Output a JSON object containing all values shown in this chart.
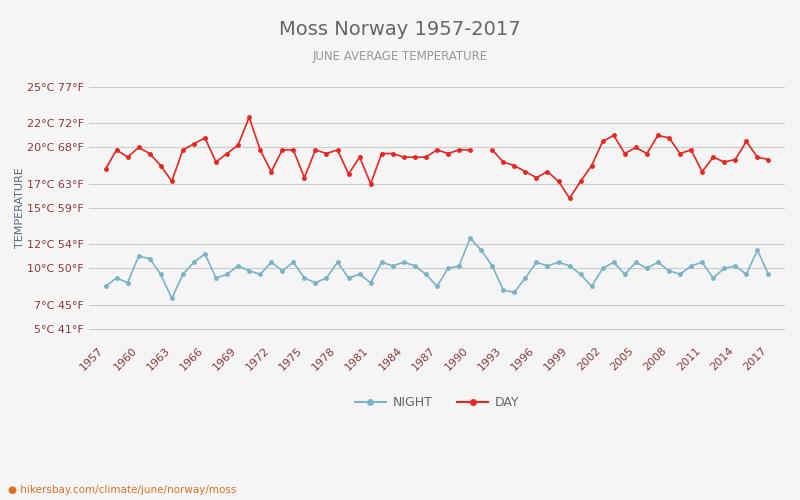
{
  "title": "Moss Norway 1957-2017",
  "subtitle": "JUNE AVERAGE TEMPERATURE",
  "ylabel": "TEMPERATURE",
  "watermark": "hikersbay.com/climate/june/norway/moss",
  "years": [
    1957,
    1958,
    1959,
    1960,
    1961,
    1962,
    1963,
    1964,
    1965,
    1966,
    1967,
    1968,
    1969,
    1970,
    1971,
    1972,
    1973,
    1974,
    1975,
    1976,
    1977,
    1978,
    1979,
    1980,
    1981,
    1982,
    1983,
    1984,
    1985,
    1986,
    1987,
    1988,
    1989,
    1990,
    1991,
    1992,
    1993,
    1994,
    1995,
    1996,
    1997,
    1998,
    1999,
    2000,
    2001,
    2002,
    2003,
    2004,
    2005,
    2006,
    2007,
    2008,
    2009,
    2010,
    2011,
    2012,
    2013,
    2014,
    2015,
    2016,
    2017
  ],
  "day_temps": [
    18.2,
    19.8,
    19.2,
    20.0,
    19.5,
    18.5,
    17.2,
    19.8,
    20.3,
    20.8,
    18.8,
    19.5,
    20.2,
    22.5,
    19.8,
    18.0,
    19.8,
    19.8,
    17.5,
    19.8,
    19.5,
    19.8,
    17.8,
    19.2,
    17.0,
    19.5,
    19.5,
    19.2,
    19.2,
    19.2,
    19.8,
    19.5,
    19.8,
    19.8,
    null,
    19.8,
    18.8,
    18.5,
    18.0,
    17.5,
    18.0,
    17.2,
    15.8,
    17.2,
    18.5,
    20.5,
    21.0,
    19.5,
    20.0,
    19.5,
    21.0,
    20.8,
    19.5,
    19.8,
    18.0,
    19.2,
    18.8,
    19.0,
    20.5,
    19.2,
    19.0
  ],
  "night_temps": [
    8.5,
    9.2,
    8.8,
    11.0,
    10.8,
    9.5,
    7.5,
    9.5,
    10.5,
    11.2,
    9.2,
    9.5,
    10.2,
    9.8,
    9.5,
    10.5,
    9.8,
    10.5,
    9.2,
    8.8,
    9.2,
    10.5,
    9.2,
    9.5,
    8.8,
    10.5,
    10.2,
    10.5,
    10.2,
    9.5,
    8.5,
    10.0,
    10.2,
    12.5,
    11.5,
    10.2,
    8.2,
    8.0,
    9.2,
    10.5,
    10.2,
    10.5,
    10.2,
    9.5,
    8.5,
    10.0,
    10.5,
    9.5,
    10.5,
    10.0,
    10.5,
    9.8,
    9.5,
    10.2,
    10.5,
    9.2,
    10.0,
    10.2,
    9.5,
    11.5,
    9.5
  ],
  "yticks_c": [
    5,
    7,
    10,
    12,
    15,
    17,
    20,
    22,
    25
  ],
  "yticks_f": [
    41,
    45,
    50,
    54,
    59,
    63,
    68,
    72,
    77
  ],
  "ylim": [
    4,
    26
  ],
  "xlim": [
    1955.5,
    2018.5
  ],
  "day_color": "#e8251f",
  "night_color": "#7ab3c8",
  "title_color": "#666666",
  "subtitle_color": "#999999",
  "label_color": "#8b3a3a",
  "ylabel_color": "#5a6a7a",
  "grid_color": "#cccccc",
  "bg_color": "#f5f5f5",
  "watermark_color": "#e07020",
  "title_fontsize": 14,
  "subtitle_fontsize": 8.5,
  "tick_fontsize": 8,
  "legend_fontsize": 9
}
